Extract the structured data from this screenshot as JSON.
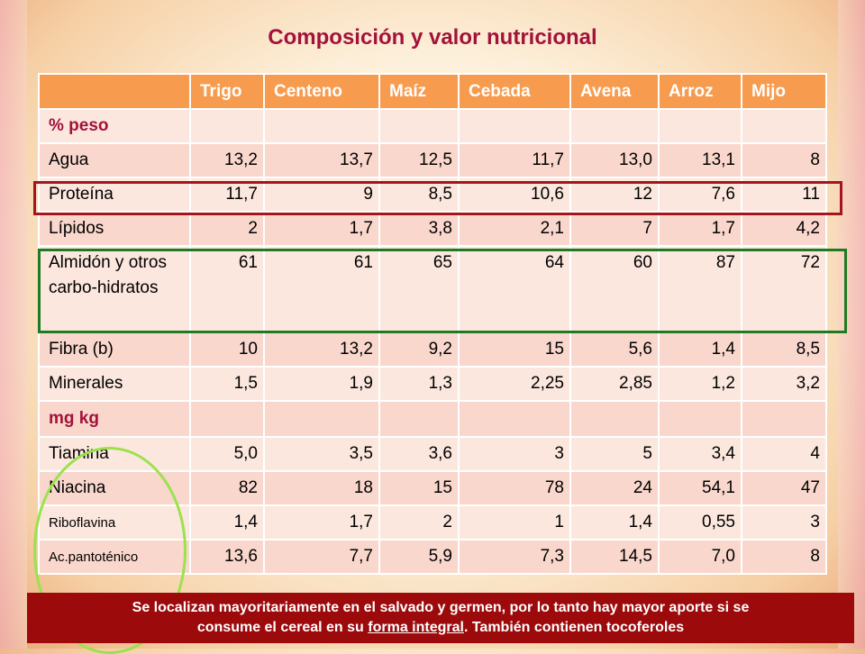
{
  "title": "Composición y valor nutricional",
  "columns": [
    "",
    "Trigo",
    "Centeno",
    "Maíz",
    "Cebada",
    "Avena",
    "Arroz",
    "Mijo"
  ],
  "rows": [
    {
      "label": "% peso",
      "section": true,
      "values": [
        "",
        "",
        "",
        "",
        "",
        "",
        ""
      ]
    },
    {
      "label": "Agua",
      "values": [
        "13,2",
        "13,7",
        "12,5",
        "11,7",
        "13,0",
        "13,1",
        "8"
      ]
    },
    {
      "label": "Proteína",
      "values": [
        "11,7",
        "9",
        "8,5",
        "10,6",
        "12",
        "7,6",
        "11"
      ]
    },
    {
      "label": "Lípidos",
      "values": [
        "2",
        "1,7",
        "3,8",
        "2,1",
        "7",
        "1,7",
        "4,2"
      ]
    },
    {
      "label": "Almidón y otros carbo-hidratos",
      "values": [
        "61",
        "61",
        "65",
        "64",
        "60",
        "87",
        "72"
      ]
    },
    {
      "label": "Fibra (b)",
      "values": [
        "10",
        "13,2",
        "9,2",
        "15",
        "5,6",
        "1,4",
        "8,5"
      ]
    },
    {
      "label": "Minerales",
      "values": [
        "1,5",
        "1,9",
        "1,3",
        "2,25",
        "2,85",
        "1,2",
        "3,2"
      ]
    },
    {
      "label": "mg kg",
      "section": true,
      "values": [
        "",
        "",
        "",
        "",
        "",
        "",
        ""
      ]
    },
    {
      "label": "Tiamina",
      "values": [
        "5,0",
        "3,5",
        "3,6",
        "3",
        "5",
        "3,4",
        "4"
      ]
    },
    {
      "label": "Niacina",
      "values": [
        "82",
        "18",
        "15",
        "78",
        "24",
        "54,1",
        "47"
      ]
    },
    {
      "label": "Riboflavina",
      "small": true,
      "values": [
        "1,4",
        "1,7",
        "2",
        "1",
        "1,4",
        "0,55",
        "3"
      ]
    },
    {
      "label": "Ac.pantoténico",
      "small": true,
      "values": [
        "13,6",
        "7,7",
        "5,9",
        "7,3",
        "14,5",
        "7,0",
        "8"
      ]
    }
  ],
  "footer": {
    "line1": "Se localizan mayoritariamente en el salvado y germen, por lo tanto hay mayor aporte si se",
    "line2_before": "consume el cereal en su ",
    "line2_link": "forma integral",
    "line2_after": ". También contienen tocoferoles"
  }
}
